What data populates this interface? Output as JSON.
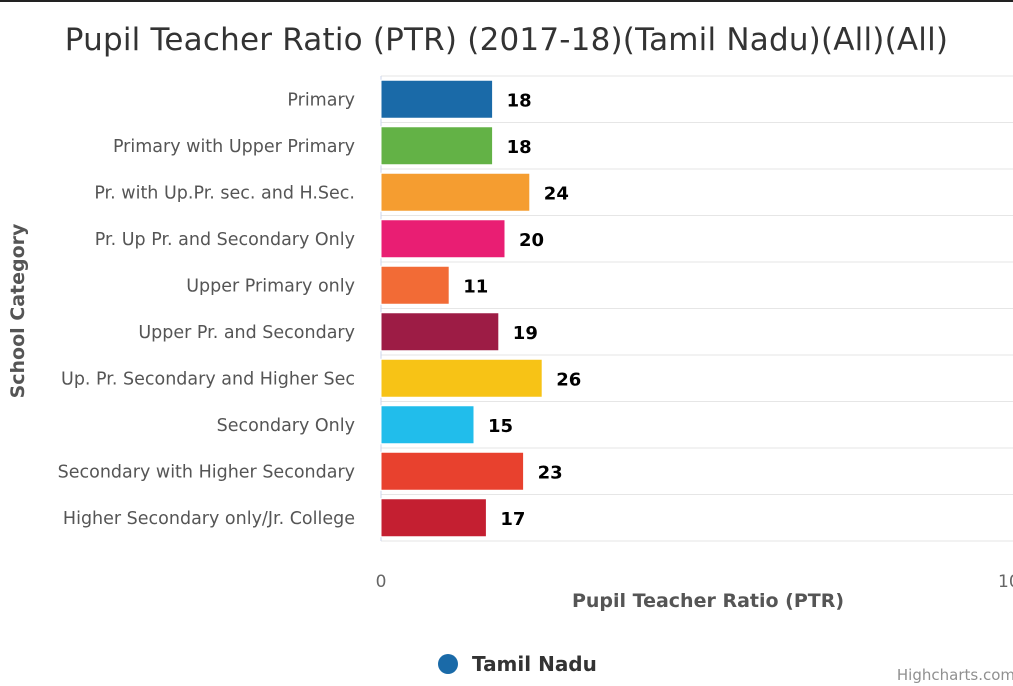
{
  "page_title": "Pupil Teacher Ratio (PTR) (2017-18)(Tamil Nadu)(All)(All)",
  "credits": "Highcharts.com",
  "chart_data": {
    "type": "bar",
    "orientation": "horizontal",
    "title": "Pupil Teacher Ratio (PTR) (2017-18)(Tamil Nadu)(All)(All)",
    "xlabel": "Pupil Teacher Ratio (PTR)",
    "ylabel": "School Category",
    "xlim": [
      0,
      100
    ],
    "x_ticks": [
      "0",
      "10"
    ],
    "grid": true,
    "legend_position": "bottom-center",
    "categories": [
      "Primary",
      "Primary with Upper Primary",
      "Pr. with Up.Pr. sec. and H.Sec.",
      "Pr. Up Pr. and Secondary Only",
      "Upper Primary only",
      "Upper Pr. and Secondary",
      "Up. Pr. Secondary and Higher Sec",
      "Secondary Only",
      "Secondary with Higher Secondary",
      "Higher Secondary only/Jr. College"
    ],
    "series": [
      {
        "name": "Tamil Nadu",
        "values": [
          18,
          18,
          24,
          20,
          11,
          19,
          26,
          15,
          23,
          17
        ],
        "color": "#1A6AA8"
      }
    ],
    "bar_colors": [
      "#1A6AA8",
      "#63B246",
      "#F59D30",
      "#E91E73",
      "#F26B36",
      "#9D1C45",
      "#F7C316",
      "#21BDEB",
      "#E8412E",
      "#C41F31"
    ]
  }
}
